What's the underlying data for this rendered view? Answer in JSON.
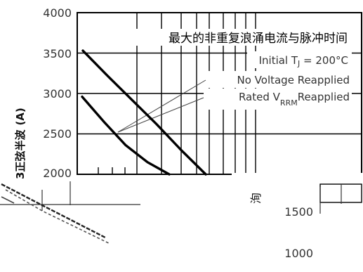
{
  "chart_data": {
    "type": "line",
    "title": "最大的非重复浪涌电流与脉冲时间",
    "ylabel": "正弦半波",
    "ylabel_prefix": "3",
    "ylabel_unit": "(A)",
    "ylim": [
      2000,
      4000
    ],
    "y_ticks": [
      "4000",
      "3500",
      "3000",
      "2500",
      "2000"
    ],
    "lower_ticks": [
      "1500",
      "1000"
    ],
    "grid": true,
    "annotation": {
      "condition_prefix": "Initial T",
      "condition_sub": "J",
      "condition_suffix": " = 200°C"
    },
    "series": [
      {
        "name": "No Voltage Reapplied",
        "name_parts": [
          "No Voltage Reapplied"
        ],
        "x": [
          1,
          2,
          3,
          4,
          5,
          6
        ],
        "values": [
          3530,
          3220,
          2920,
          2620,
          2300,
          2000
        ]
      },
      {
        "name": "Rated VRRM Reapplied",
        "name_parts": [
          "Rated V",
          "RRM",
          "Reapplied"
        ],
        "x": [
          1,
          2,
          3,
          4,
          5
        ],
        "values": [
          2960,
          2650,
          2360,
          2150,
          2000
        ]
      }
    ],
    "fragment_label": "洵"
  }
}
